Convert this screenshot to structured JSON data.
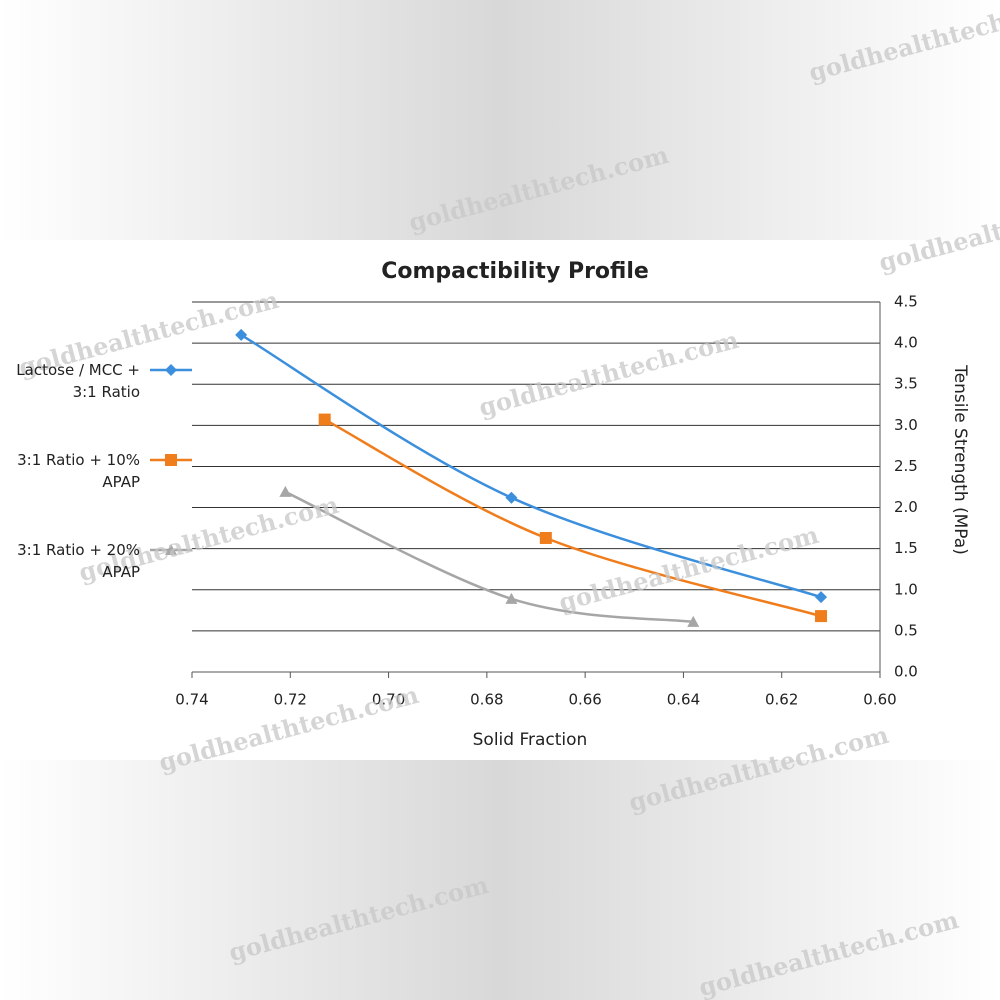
{
  "chart_data": {
    "type": "line",
    "title": "Compactibility Profile",
    "x_label": "Solid Fraction",
    "y_label": "Tensile Strength (MPa)",
    "watermark": "goldhealthtech.com",
    "xlim": [
      0.74,
      0.6
    ],
    "xticks": [
      0.74,
      0.72,
      {
        "value": 0.7,
        "label": "0.70"
      },
      0.68,
      0.66,
      0.64,
      0.62,
      {
        "value": 0.6,
        "label": "0.60"
      }
    ],
    "ylim": [
      0,
      4.5
    ],
    "yticks": [
      {
        "value": 0,
        "label": "0.0"
      },
      0.5,
      {
        "value": 1,
        "label": "1.0"
      },
      1.5,
      {
        "value": 2,
        "label": "2.0"
      },
      2.5,
      {
        "value": 3,
        "label": "3.0"
      },
      3.5,
      {
        "value": 4,
        "label": "4.0"
      },
      4.5
    ],
    "grid": true,
    "y_axis_side": "right",
    "legend": "left",
    "series": [
      {
        "name": "Lactose / MCC + 3:1 Ratio",
        "color": "#3b8fdc",
        "marker": "diamond",
        "x": [
          0.73,
          0.675,
          0.612
        ],
        "values": [
          4.1,
          2.12,
          0.91
        ]
      },
      {
        "name": "3:1 Ratio + 10% APAP",
        "color": "#f07d1c",
        "marker": "square",
        "x": [
          0.713,
          0.668,
          0.612
        ],
        "values": [
          3.07,
          1.63,
          0.68
        ]
      },
      {
        "name": "3:1 Ratio + 20% APAP",
        "color": "#a6a6a6",
        "marker": "triangle",
        "x": [
          0.721,
          0.675,
          0.638
        ],
        "values": [
          2.19,
          0.89,
          0.61
        ]
      }
    ]
  }
}
